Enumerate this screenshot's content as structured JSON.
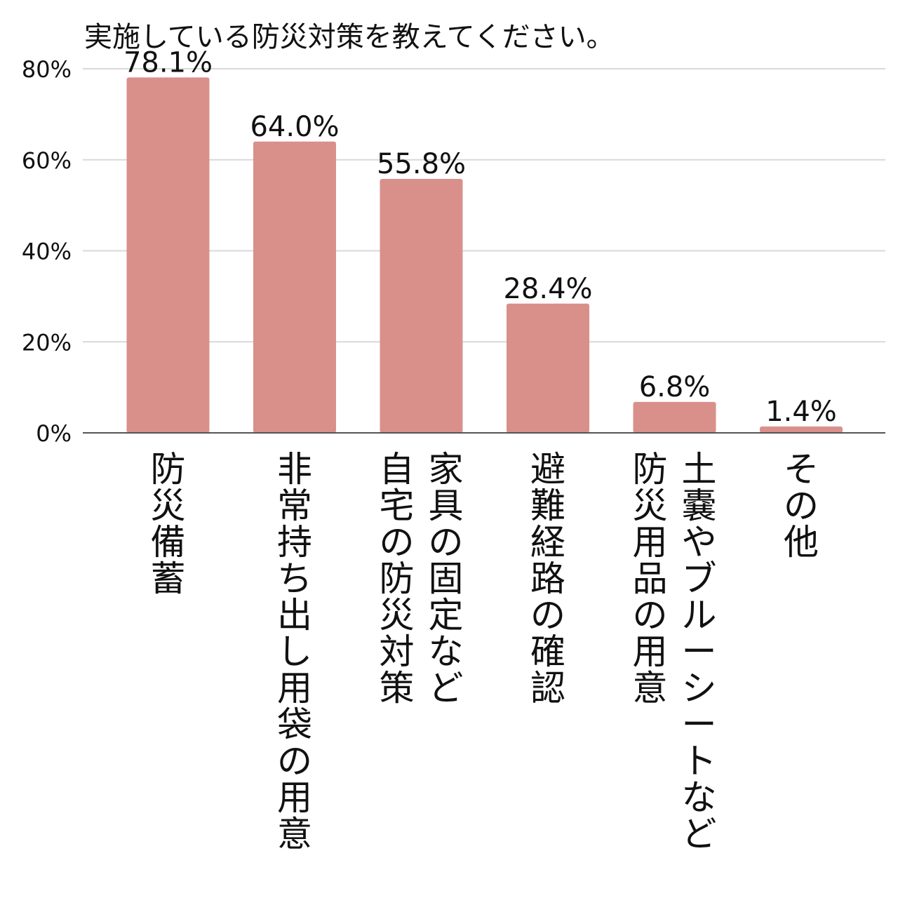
{
  "chart_data": {
    "type": "bar",
    "title": "実施している防災対策を教えてください。",
    "xlabel": "",
    "ylabel": "",
    "ylim": [
      0,
      80
    ],
    "yticks": [
      "0%",
      "20%",
      "40%",
      "60%",
      "80%"
    ],
    "ytick_values": [
      0,
      20,
      40,
      60,
      80
    ],
    "grid": true,
    "bar_color": "#d9908b",
    "categories": [
      {
        "lines": [
          "防災備蓄"
        ]
      },
      {
        "lines": [
          "非常持ち出し用袋の用意"
        ]
      },
      {
        "lines": [
          "家具の固定など",
          "自宅の防災対策"
        ]
      },
      {
        "lines": [
          "避難経路の確認"
        ]
      },
      {
        "lines": [
          "土嚢やブルーシートなど",
          "防災用品の用意"
        ]
      },
      {
        "lines": [
          "その他"
        ]
      }
    ],
    "values": [
      78.1,
      64.0,
      55.8,
      28.4,
      6.8,
      1.4
    ],
    "data_labels": [
      "78.1%",
      "64.0%",
      "55.8%",
      "28.4%",
      "6.8%",
      "1.4%"
    ]
  }
}
